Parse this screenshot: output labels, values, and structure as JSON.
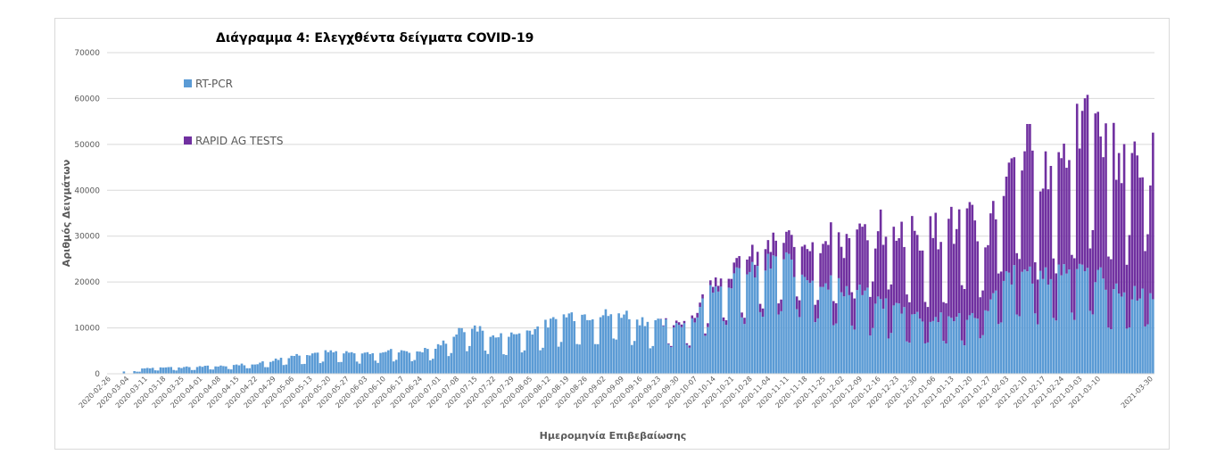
{
  "chart_data": {
    "type": "bar",
    "stacked": true,
    "title": "Διάγραμμα 4: Ελεγχθέντα δείγματα COVID-19",
    "xlabel": "Ημερομηνία Επιβεβαίωσης",
    "ylabel": "Αριθμός Δειγμάτων",
    "ylim": [
      0,
      70000
    ],
    "yticks": [
      "0",
      "10000",
      "20000",
      "30000",
      "40000",
      "50000",
      "60000",
      "70000"
    ],
    "x_range": [
      "2020-02-26",
      "2021-03-31"
    ],
    "xticks": [
      "2020-02-26",
      "2020-03-04",
      "2020-03-11",
      "2020-03-18",
      "2020-03-25",
      "2020-04-01",
      "2020-04-08",
      "2020-04-15",
      "2020-04-22",
      "2020-04-29",
      "2020-05-06",
      "2020-05-13",
      "2020-05-20",
      "2020-05-27",
      "2020-06-03",
      "2020-06-10",
      "2020-06-17",
      "2020-06-24",
      "2020-07-01",
      "2020-07-08",
      "2020-07-15",
      "2020-07-22",
      "2020-07-29",
      "2020-08-05",
      "2020-08-12",
      "2020-08-19",
      "2020-08-26",
      "2020-09-02",
      "2020-09-09",
      "2020-09-16",
      "2020-09-23",
      "2020-09-30",
      "2020-10-07",
      "2020-10-14",
      "2020-10-21",
      "2020-10-28",
      "2020-11-04",
      "2020-11-11",
      "2020-11-18",
      "2020-11-25",
      "2020-12-02",
      "2020-12-09",
      "2020-12-16",
      "2020-12-23",
      "2020-12-30",
      "2021-01-06",
      "2021-01-13",
      "2021-01-20",
      "2021-01-27",
      "2021-02-03",
      "2021-02-10",
      "2021-02-17",
      "2021-02-24",
      "2021-03-03",
      "2021-03-10",
      "2021-03-30"
    ],
    "grid": true,
    "legend_position": "top-left",
    "series": [
      {
        "name": "RT-PCR",
        "color": "#5b9bd5",
        "weekly_typical": [
          0,
          200,
          1200,
          1500,
          1400,
          1600,
          1700,
          2000,
          2200,
          3000,
          4000,
          4500,
          4800,
          4500,
          4500,
          5000,
          5200,
          5000,
          6000,
          9000,
          10500,
          8000,
          8500,
          9500,
          11000,
          13000,
          13000,
          13000,
          13500,
          12000,
          11000,
          11000,
          12000,
          20000,
          21000,
          22000,
          24000,
          25000,
          22000,
          21000,
          19000,
          18000,
          16000,
          15000,
          13000,
          12000,
          12500,
          12500,
          15000,
          21000,
          23000,
          21000,
          23000,
          24500,
          22000,
          18000
        ]
      },
      {
        "name": "RAPID AG TESTS",
        "color": "#7030a0",
        "weekly_typical": [
          0,
          0,
          0,
          0,
          0,
          0,
          0,
          0,
          0,
          0,
          0,
          0,
          0,
          0,
          0,
          0,
          0,
          0,
          0,
          0,
          0,
          0,
          0,
          0,
          0,
          0,
          0,
          0,
          0,
          0,
          0,
          500,
          800,
          1500,
          2000,
          3000,
          4000,
          4000,
          8000,
          9000,
          10000,
          12000,
          16000,
          17000,
          18000,
          19000,
          20000,
          20000,
          16000,
          23000,
          27000,
          22000,
          25000,
          30000,
          31000,
          30000
        ]
      }
    ]
  }
}
